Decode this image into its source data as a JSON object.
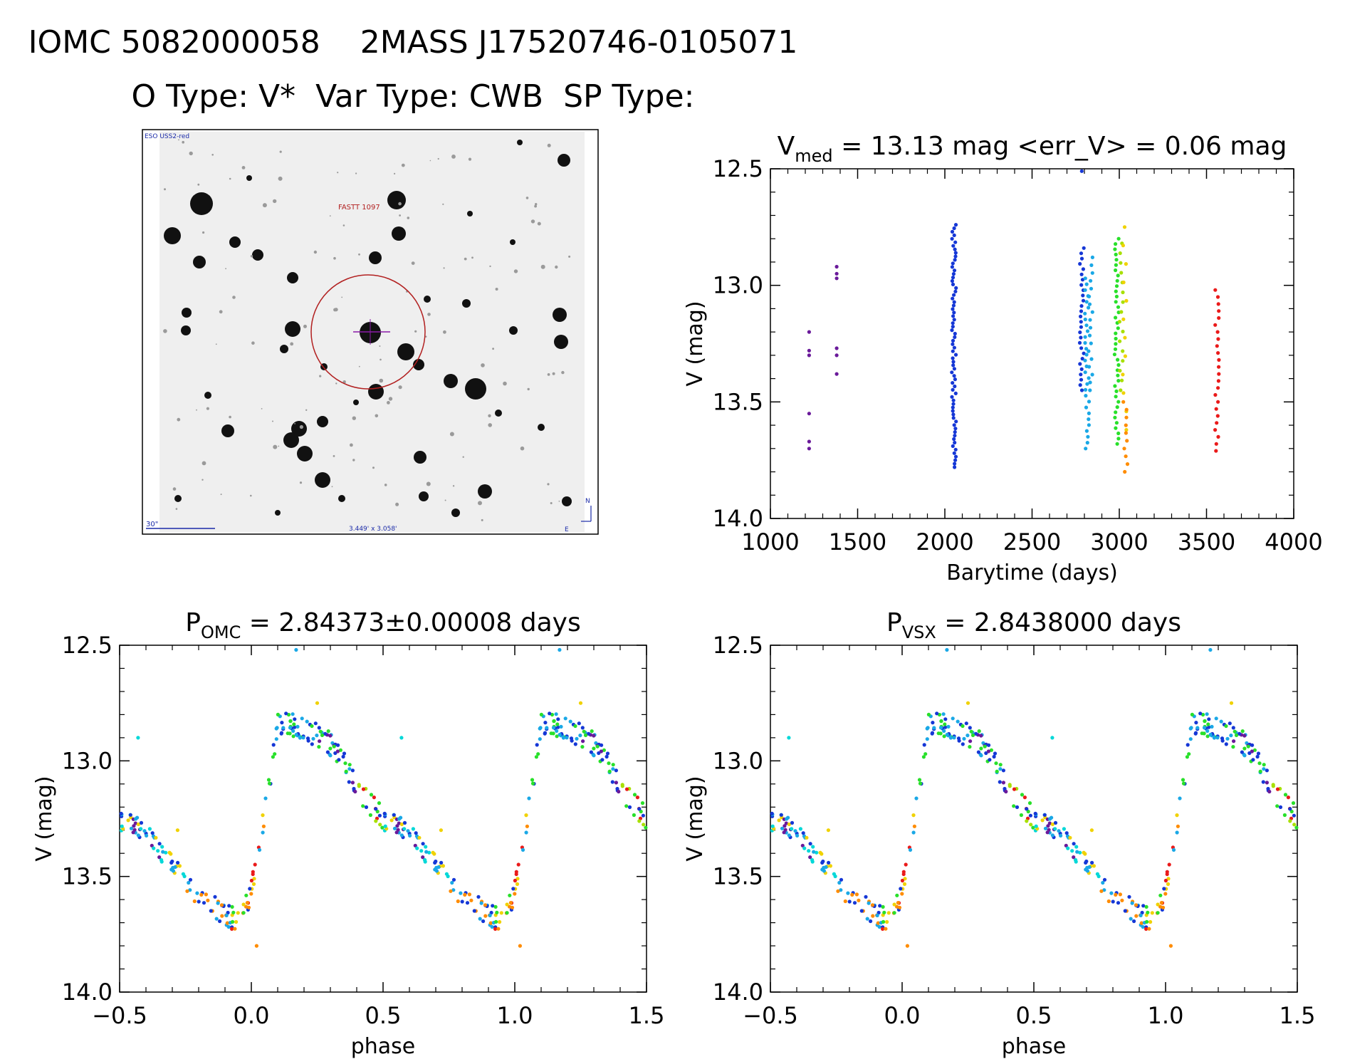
{
  "header": {
    "line1": "IOMC 5082000058    2MASS J17520746-0105071",
    "line2": "O Type: V*  Var Type: CWB  SP Type:"
  },
  "image_panel": {
    "survey_label": "ESO USS2-red",
    "target_label": "FASTT 1097",
    "scale_label": "30\"",
    "fov_label": "3.449' x 3.058'",
    "north_label": "N",
    "east_label": "E"
  },
  "colors": {
    "purple": "#6a1a9a",
    "blue": "#1537d6",
    "lightblue": "#1aa8e6",
    "cyan": "#00d8d8",
    "green": "#28e02a",
    "yellowgreen": "#a8e000",
    "yellow": "#f0d200",
    "orange": "#ff8c00",
    "red": "#ea1a1a"
  },
  "chart_data": [
    {
      "id": "lightcurve",
      "type": "scatter",
      "title": {
        "main": "V",
        "sub": "med",
        "rest": " = 13.13 mag <err_V> = 0.06 mag"
      },
      "xlabel": "Barytime (days)",
      "ylabel": "V (mag)",
      "xlim": [
        1000,
        4000
      ],
      "ylim": [
        14.0,
        12.5
      ],
      "xticks": [
        1000,
        1500,
        2000,
        2500,
        3000,
        3500,
        4000
      ],
      "xtick_labels": [
        "1000",
        "1500",
        "2000",
        "2500",
        "3000",
        "3500",
        "4000"
      ],
      "yticks": [
        12.5,
        13.0,
        13.5,
        14.0
      ],
      "ytick_labels": [
        "12.5",
        "13.0",
        "13.5",
        "14.0"
      ],
      "groups": [
        {
          "x": 1222,
          "color": "purple",
          "y": [
            13.2,
            13.28,
            13.3,
            13.55,
            13.67,
            13.7
          ]
        },
        {
          "x": 1380,
          "color": "purple",
          "y": [
            12.92,
            12.95,
            12.97,
            13.27,
            13.3,
            13.38
          ]
        },
        {
          "x": 2052,
          "color": "blue",
          "ymin": 12.74,
          "ymax": 13.78,
          "n": 70
        },
        {
          "x": 2785,
          "color": "blue",
          "ymin": 12.84,
          "ymax": 13.45,
          "n": 28
        },
        {
          "x": 2785,
          "color": "blue",
          "y": [
            12.51
          ]
        },
        {
          "x": 2815,
          "color": "lightblue",
          "ymin": 12.97,
          "ymax": 13.7,
          "n": 30
        },
        {
          "x": 2835,
          "color": "lightblue",
          "ymin": 12.88,
          "ymax": 13.45,
          "n": 18
        },
        {
          "x": 2985,
          "color": "green",
          "ymin": 12.8,
          "ymax": 13.68,
          "n": 40
        },
        {
          "x": 3010,
          "color": "yellowgreen",
          "ymin": 12.82,
          "ymax": 13.45,
          "n": 16
        },
        {
          "x": 3030,
          "color": "yellow",
          "ymin": 12.75,
          "ymax": 13.62,
          "n": 12
        },
        {
          "x": 3035,
          "color": "orange",
          "ymin": 13.5,
          "ymax": 13.8,
          "n": 10
        },
        {
          "x": 3560,
          "color": "red",
          "ymin": 13.02,
          "ymax": 13.71,
          "n": 24
        }
      ]
    },
    {
      "id": "phase_omc",
      "type": "scatter",
      "title": {
        "main": "P",
        "sub": "OMC",
        "rest": " = 2.84373±0.00008 days"
      },
      "xlabel": "phase",
      "ylabel": "V (mag)",
      "xlim": [
        -0.5,
        1.5
      ],
      "ylim": [
        14.0,
        12.5
      ],
      "xticks": [
        -0.5,
        0.0,
        0.5,
        1.0,
        1.5
      ],
      "xtick_labels": [
        "−0.5",
        "0.0",
        "0.5",
        "1.0",
        "1.5"
      ],
      "yticks": [
        12.5,
        13.0,
        13.5,
        14.0
      ],
      "ytick_labels": [
        "12.5",
        "13.0",
        "13.5",
        "14.0"
      ],
      "curve_phase": [
        0.0,
        0.06,
        0.1,
        0.15,
        0.2,
        0.28,
        0.35,
        0.42,
        0.5,
        0.58,
        0.66,
        0.74,
        0.8,
        0.86,
        0.9,
        0.93,
        0.96,
        0.985,
        1.0
      ],
      "curve_mag": [
        13.55,
        13.15,
        12.85,
        12.84,
        12.87,
        12.9,
        13.0,
        13.15,
        13.25,
        13.3,
        13.4,
        13.5,
        13.58,
        13.63,
        13.67,
        13.68,
        13.67,
        13.62,
        13.55
      ],
      "outliers": [
        [
          0.17,
          12.52,
          "lightblue"
        ],
        [
          0.57,
          12.9,
          "cyan"
        ],
        [
          0.25,
          12.75,
          "yellow"
        ],
        [
          0.72,
          13.3,
          "yellow"
        ],
        [
          0.02,
          13.8,
          "orange"
        ]
      ]
    },
    {
      "id": "phase_vsx",
      "type": "scatter",
      "title": {
        "main": "P",
        "sub": "VSX",
        "rest": " = 2.8438000 days"
      },
      "xlabel": "phase",
      "ylabel": "V (mag)",
      "xlim": [
        -0.5,
        1.5
      ],
      "ylim": [
        14.0,
        12.5
      ],
      "xticks": [
        -0.5,
        0.0,
        0.5,
        1.0,
        1.5
      ],
      "xtick_labels": [
        "−0.5",
        "0.0",
        "0.5",
        "1.0",
        "1.5"
      ],
      "yticks": [
        12.5,
        13.0,
        13.5,
        14.0
      ],
      "ytick_labels": [
        "12.5",
        "13.0",
        "13.5",
        "14.0"
      ],
      "curve_phase": [
        0.0,
        0.06,
        0.1,
        0.15,
        0.2,
        0.28,
        0.35,
        0.42,
        0.5,
        0.58,
        0.66,
        0.74,
        0.8,
        0.86,
        0.9,
        0.93,
        0.96,
        0.985,
        1.0
      ],
      "curve_mag": [
        13.55,
        13.15,
        12.85,
        12.84,
        12.87,
        12.9,
        13.0,
        13.15,
        13.25,
        13.3,
        13.4,
        13.5,
        13.58,
        13.63,
        13.67,
        13.68,
        13.67,
        13.62,
        13.55
      ],
      "outliers": [
        [
          0.17,
          12.52,
          "lightblue"
        ],
        [
          0.57,
          12.9,
          "cyan"
        ],
        [
          0.25,
          12.75,
          "yellow"
        ],
        [
          0.72,
          13.3,
          "yellow"
        ],
        [
          0.02,
          13.8,
          "orange"
        ]
      ]
    }
  ]
}
